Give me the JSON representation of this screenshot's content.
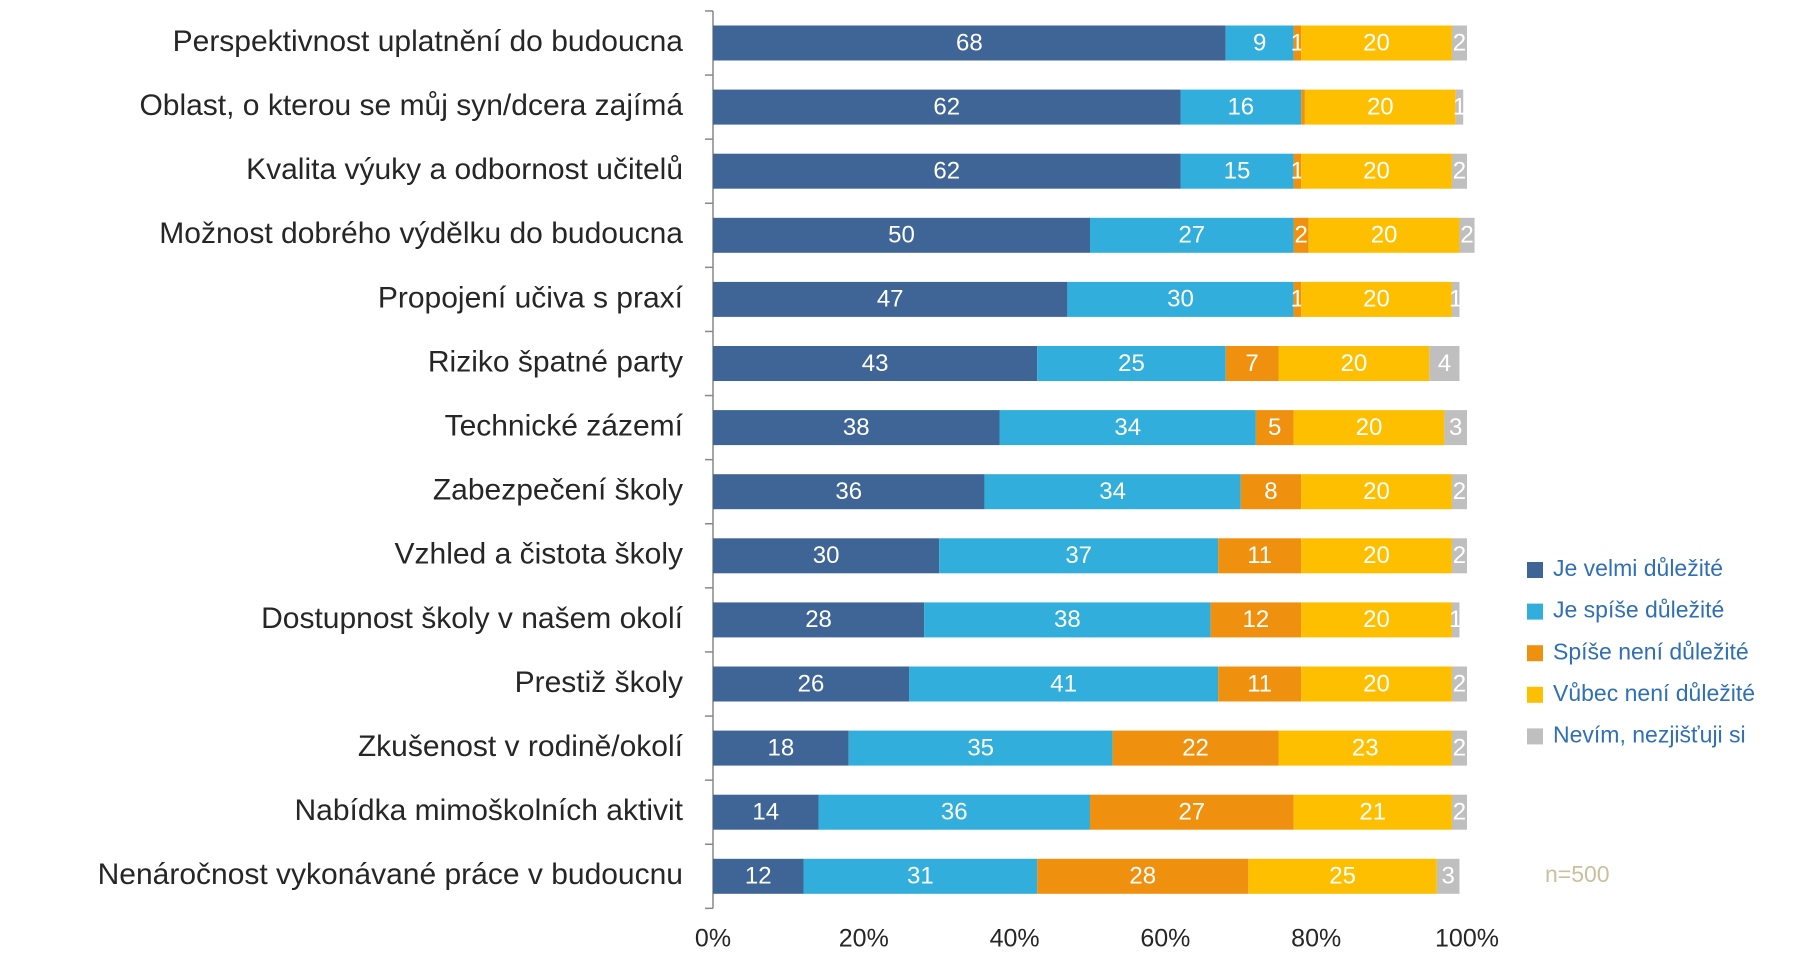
{
  "chart_data": {
    "type": "stacked-bar-horizontal",
    "categories": [
      "Perspektivnost uplatnění do budoucna",
      "Oblast, o kterou se můj syn/dcera zajímá",
      "Kvalita výuky a odbornost učitelů",
      "Možnost dobrého výdělku do budoucna",
      "Propojení učiva s praxí",
      "Riziko špatné party",
      "Technické zázemí",
      "Zabezpečení školy",
      "Vzhled a čistota školy",
      "Dostupnost školy v našem okolí",
      "Prestiž školy",
      "Zkušenost v rodině/okolí",
      "Nabídka mimoškolních aktivit",
      "Nenáročnost vykonávané práce v budoucnu"
    ],
    "series": [
      {
        "name": "Je velmi důležité",
        "color": "#3f6597",
        "values": [
          68,
          62,
          62,
          50,
          47,
          43,
          38,
          36,
          30,
          28,
          26,
          18,
          14,
          12
        ]
      },
      {
        "name": "Je spíše důležité",
        "color": "#31aedb",
        "values": [
          9,
          16,
          15,
          27,
          30,
          25,
          34,
          34,
          37,
          38,
          41,
          35,
          36,
          31
        ]
      },
      {
        "name": "Spíše není důležité",
        "color": "#f0900f",
        "values": [
          1,
          0.5,
          1,
          2,
          1,
          7,
          5,
          8,
          11,
          12,
          11,
          22,
          27,
          28
        ],
        "value_labels": [
          "1",
          null,
          "1",
          "2",
          "1",
          "7",
          "5",
          "8",
          "11",
          "12",
          "11",
          "22",
          "27",
          "28"
        ]
      },
      {
        "name": "Vůbec není důležité",
        "color": "#fdbf00",
        "values": [
          20,
          20,
          20,
          20,
          20,
          20,
          20,
          20,
          20,
          20,
          20,
          23,
          21,
          25
        ]
      },
      {
        "name": "Nevím, nezjišťuji si",
        "color": "#bfbfbf",
        "values": [
          2,
          1,
          2,
          2,
          1,
          4,
          3,
          2,
          2,
          1,
          2,
          2,
          2,
          3
        ]
      }
    ],
    "xlim": [
      0,
      100
    ],
    "xticks": [
      {
        "value": 0,
        "label": "0%"
      },
      {
        "value": 20,
        "label": "20%"
      },
      {
        "value": 40,
        "label": "40%"
      },
      {
        "value": 60,
        "label": "60%"
      },
      {
        "value": 80,
        "label": "80%"
      },
      {
        "value": 100,
        "label": "100%"
      }
    ],
    "legend": "right",
    "annotation": "n=500"
  }
}
